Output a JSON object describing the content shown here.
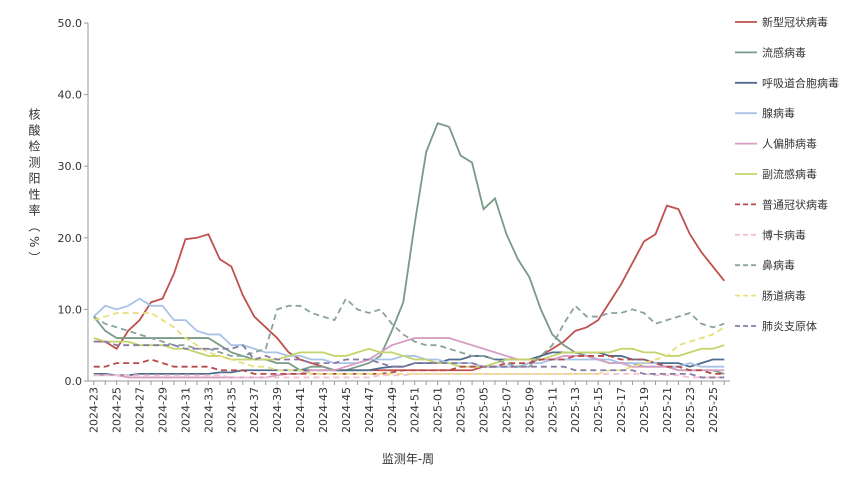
{
  "chart_data": {
    "type": "line",
    "y_label": "核酸检测阳性率（%）",
    "x_label": "监测年-周",
    "categories": [
      "2024-23",
      null,
      "2024-25",
      null,
      "2024-27",
      null,
      "2024-29",
      null,
      "2024-31",
      null,
      "2024-33",
      null,
      "2024-35",
      null,
      "2024-37",
      null,
      "2024-39",
      null,
      "2024-41",
      null,
      "2024-43",
      null,
      "2024-45",
      null,
      "2024-47",
      null,
      "2024-49",
      null,
      "2024-51",
      null,
      "2025-01",
      null,
      "2025-03",
      null,
      "2025-05",
      null,
      "2025-07",
      null,
      "2025-09",
      null,
      "2025-11",
      null,
      "2025-13",
      null,
      "2025-15",
      null,
      "2025-17",
      null,
      "2025-19",
      null,
      "2025-21",
      null,
      "2025-23",
      null,
      "2025-25",
      null
    ],
    "ylim": [
      0,
      50
    ],
    "yticks": [
      {
        "value": 0,
        "label": "0.0"
      },
      {
        "value": 10,
        "label": "10.0"
      },
      {
        "value": 20,
        "label": "20.0"
      },
      {
        "value": 30,
        "label": "30.0"
      },
      {
        "value": 40,
        "label": "40.0"
      },
      {
        "value": 50,
        "label": "50.0"
      }
    ],
    "series": [
      {
        "name": "新型冠状病毒",
        "color": "#c0504d",
        "dashed": false,
        "values": [
          5.5,
          5.5,
          4.5,
          7,
          8.5,
          11,
          11.5,
          15,
          19.8,
          20,
          20.5,
          17,
          16,
          12,
          9,
          7.5,
          6,
          4,
          3,
          2.5,
          2,
          1.5,
          1.5,
          1.5,
          1.5,
          1.5,
          1.5,
          1.5,
          1.5,
          1.5,
          1.5,
          1.5,
          1.5,
          1.5,
          2,
          2,
          2,
          2,
          2.5,
          3.5,
          4.5,
          5.5,
          7,
          7.5,
          8.5,
          11,
          13.5,
          16.5,
          19.5,
          20.5,
          24.5,
          24,
          20.5,
          18,
          16,
          14
        ]
      },
      {
        "name": "流感病毒",
        "color": "#7a9a88",
        "dashed": false,
        "values": [
          9,
          7,
          6,
          6,
          6,
          6,
          6,
          6,
          6,
          6,
          6,
          5,
          4,
          3.5,
          3,
          3,
          2.5,
          2.5,
          1.5,
          2,
          2,
          1.5,
          1.5,
          2,
          2.5,
          3.5,
          7,
          11,
          22,
          32,
          36,
          35.5,
          31.5,
          30.5,
          24,
          25.5,
          20.5,
          17,
          14.5,
          10,
          6.5,
          5,
          4,
          3.5,
          3,
          2.5,
          2.5,
          2.5,
          2,
          2,
          2,
          1.5,
          1.5,
          1.5,
          1.5,
          1
        ]
      },
      {
        "name": "呼吸道合胞病毒",
        "color": "#4f6d8f",
        "dashed": false,
        "values": [
          1,
          1,
          0.8,
          0.8,
          1,
          1,
          1,
          1,
          1,
          1,
          1,
          1.2,
          1.2,
          1.5,
          1.5,
          1.5,
          1.5,
          1.5,
          1.5,
          1.5,
          1.5,
          1.5,
          1.5,
          1.5,
          1.5,
          1.8,
          2,
          2,
          2.5,
          2.5,
          2.5,
          3,
          3,
          3.5,
          3.5,
          3,
          3,
          3,
          3,
          3.5,
          4,
          4,
          4,
          4,
          4,
          3.5,
          3.5,
          3,
          3,
          2.5,
          2.5,
          2.5,
          2,
          2.5,
          3,
          3
        ]
      },
      {
        "name": "腺病毒",
        "color": "#a9c3e6",
        "dashed": false,
        "values": [
          9,
          10.5,
          10,
          10.5,
          11.5,
          10.5,
          10.5,
          8.5,
          8.5,
          7,
          6.5,
          6.5,
          5,
          5,
          4.5,
          4,
          4,
          3.5,
          3.5,
          3,
          3,
          2.5,
          2.5,
          2.5,
          3,
          3,
          3,
          3.5,
          3.5,
          3,
          3,
          2.5,
          2.5,
          2.5,
          2,
          2,
          2,
          2,
          2.5,
          2.5,
          3,
          3,
          3,
          3,
          3,
          3,
          2.5,
          2.5,
          2.5,
          2.5,
          2,
          2,
          2.5,
          2,
          2,
          2
        ]
      },
      {
        "name": "人偏肺病毒",
        "color": "#d79ec4",
        "dashed": false,
        "values": [
          0.8,
          0.8,
          0.8,
          0.5,
          0.5,
          0.5,
          0.5,
          0.5,
          0.5,
          0.5,
          0.5,
          0.5,
          0.5,
          0.5,
          0.5,
          0.5,
          0.8,
          1,
          1,
          1.5,
          1.5,
          1.5,
          2,
          2.5,
          3,
          4,
          5,
          5.5,
          6,
          6,
          6,
          6,
          5.5,
          5,
          4.5,
          4,
          3.5,
          3,
          3,
          3,
          3,
          3.5,
          3.5,
          3.5,
          3,
          2.5,
          2.5,
          2,
          2,
          2,
          2,
          1.5,
          1.5,
          1.5,
          1.5,
          1.5
        ]
      },
      {
        "name": "副流感病毒",
        "color": "#c3d46a",
        "dashed": false,
        "values": [
          6,
          5.5,
          5.5,
          5.5,
          5,
          5,
          5,
          4.5,
          4.5,
          4,
          3.5,
          3.5,
          3,
          3,
          3,
          3,
          3,
          3.5,
          4,
          4,
          4,
          3.5,
          3.5,
          4,
          4.5,
          4,
          4,
          3.5,
          3,
          3,
          2.5,
          2.5,
          2,
          2,
          2,
          2.5,
          3,
          3,
          3,
          3,
          3.5,
          4,
          4,
          4,
          4,
          4,
          4.5,
          4.5,
          4,
          4,
          3.5,
          3.5,
          4,
          4.5,
          4.5,
          5
        ]
      },
      {
        "name": "普通冠状病毒",
        "color": "#b94a4a",
        "dashed": true,
        "values": [
          2,
          2,
          2.5,
          2.5,
          2.5,
          3,
          2.5,
          2,
          2,
          2,
          2,
          1.5,
          1.5,
          1.5,
          1,
          1,
          1,
          1,
          1,
          1,
          1,
          1,
          1,
          1,
          1,
          1,
          1.2,
          1.5,
          1.5,
          1.5,
          1.5,
          1.5,
          2,
          2,
          2,
          2,
          2.5,
          2.5,
          2.5,
          3,
          3,
          3,
          3.5,
          3.5,
          3.5,
          3.5,
          3,
          3,
          3,
          2.5,
          2,
          2,
          1.5,
          1.5,
          1,
          1
        ]
      },
      {
        "name": "博卡病毒",
        "color": "#f2c0d0",
        "dashed": true,
        "values": [
          0.8,
          0.8,
          0.8,
          0.8,
          0.8,
          0.8,
          0.8,
          0.8,
          0.8,
          0.8,
          0.8,
          0.8,
          0.5,
          0.5,
          0.5,
          0.5,
          0.5,
          0.5,
          0.5,
          0.5,
          0.5,
          0.5,
          0.5,
          0.5,
          0.5,
          0.8,
          0.8,
          0.8,
          1,
          1,
          1,
          1,
          1,
          1,
          1,
          1,
          1,
          1,
          1,
          1,
          1,
          1,
          1,
          1,
          1,
          1,
          1,
          1,
          1,
          0.8,
          0.8,
          0.8,
          0.5,
          0.5,
          0.5,
          0.5
        ]
      },
      {
        "name": "鼻病毒",
        "color": "#8aa39a",
        "dashed": true,
        "values": [
          9,
          8,
          7.5,
          7,
          6.5,
          6,
          5.5,
          5,
          5,
          4.5,
          4.5,
          4,
          3.5,
          3.5,
          4,
          4.5,
          10,
          10.5,
          10.5,
          9.5,
          9,
          8.5,
          11.5,
          10,
          9.5,
          10,
          8,
          6.5,
          5.5,
          5,
          5,
          4.5,
          4,
          3.5,
          3.5,
          3,
          2.5,
          2,
          2,
          3.5,
          5,
          8,
          10.5,
          9,
          9,
          9.5,
          9.5,
          10,
          9.5,
          8,
          8.5,
          9,
          9.5,
          8,
          7.5,
          8
        ]
      },
      {
        "name": "肠道病毒",
        "color": "#e6e07a",
        "dashed": true,
        "values": [
          8.5,
          9,
          9.5,
          9.5,
          9.5,
          9.5,
          8.5,
          7.5,
          6,
          5,
          4,
          3.5,
          3,
          2.5,
          2,
          2,
          1.5,
          1.5,
          1.5,
          1,
          1,
          1,
          1,
          1,
          1,
          1,
          1,
          1,
          1,
          1,
          1,
          1,
          1,
          1,
          1,
          1,
          1,
          1,
          1,
          1,
          1,
          1,
          1,
          1,
          1,
          1.5,
          1.5,
          2,
          2.5,
          3,
          3.5,
          5,
          5.5,
          6,
          6.5,
          7.5
        ]
      },
      {
        "name": "肺炎支原体",
        "color": "#8a7aa6",
        "dashed": true,
        "values": [
          5.5,
          5.5,
          5,
          5,
          5,
          5,
          5,
          5,
          4.5,
          4.5,
          4.5,
          4.5,
          4.5,
          5,
          3,
          3.5,
          3,
          3,
          3,
          2.5,
          2.5,
          2.5,
          3,
          3,
          3,
          2.5,
          2,
          2,
          2.5,
          2.5,
          2.5,
          2.5,
          2.5,
          2.5,
          2,
          2,
          2,
          2,
          2,
          2,
          2,
          2,
          1.5,
          1.5,
          1.5,
          1.5,
          1.5,
          1.5,
          1,
          1,
          1,
          1,
          1,
          0.5,
          0.5,
          0.5
        ]
      }
    ]
  }
}
